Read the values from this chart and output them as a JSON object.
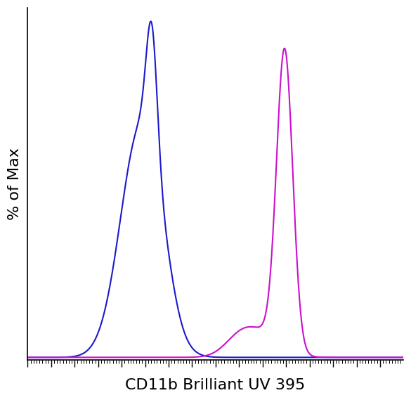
{
  "title": "",
  "xlabel": "CD11b Brilliant UV 395",
  "ylabel": "% of Max",
  "background_color": "#ffffff",
  "blue_color": "#1a1acc",
  "magenta_color": "#cc10cc",
  "xlim": [
    0,
    1023
  ],
  "ylim": [
    -0.005,
    1.04
  ],
  "xlabel_fontsize": 16,
  "ylabel_fontsize": 16,
  "linewidth": 1.5
}
